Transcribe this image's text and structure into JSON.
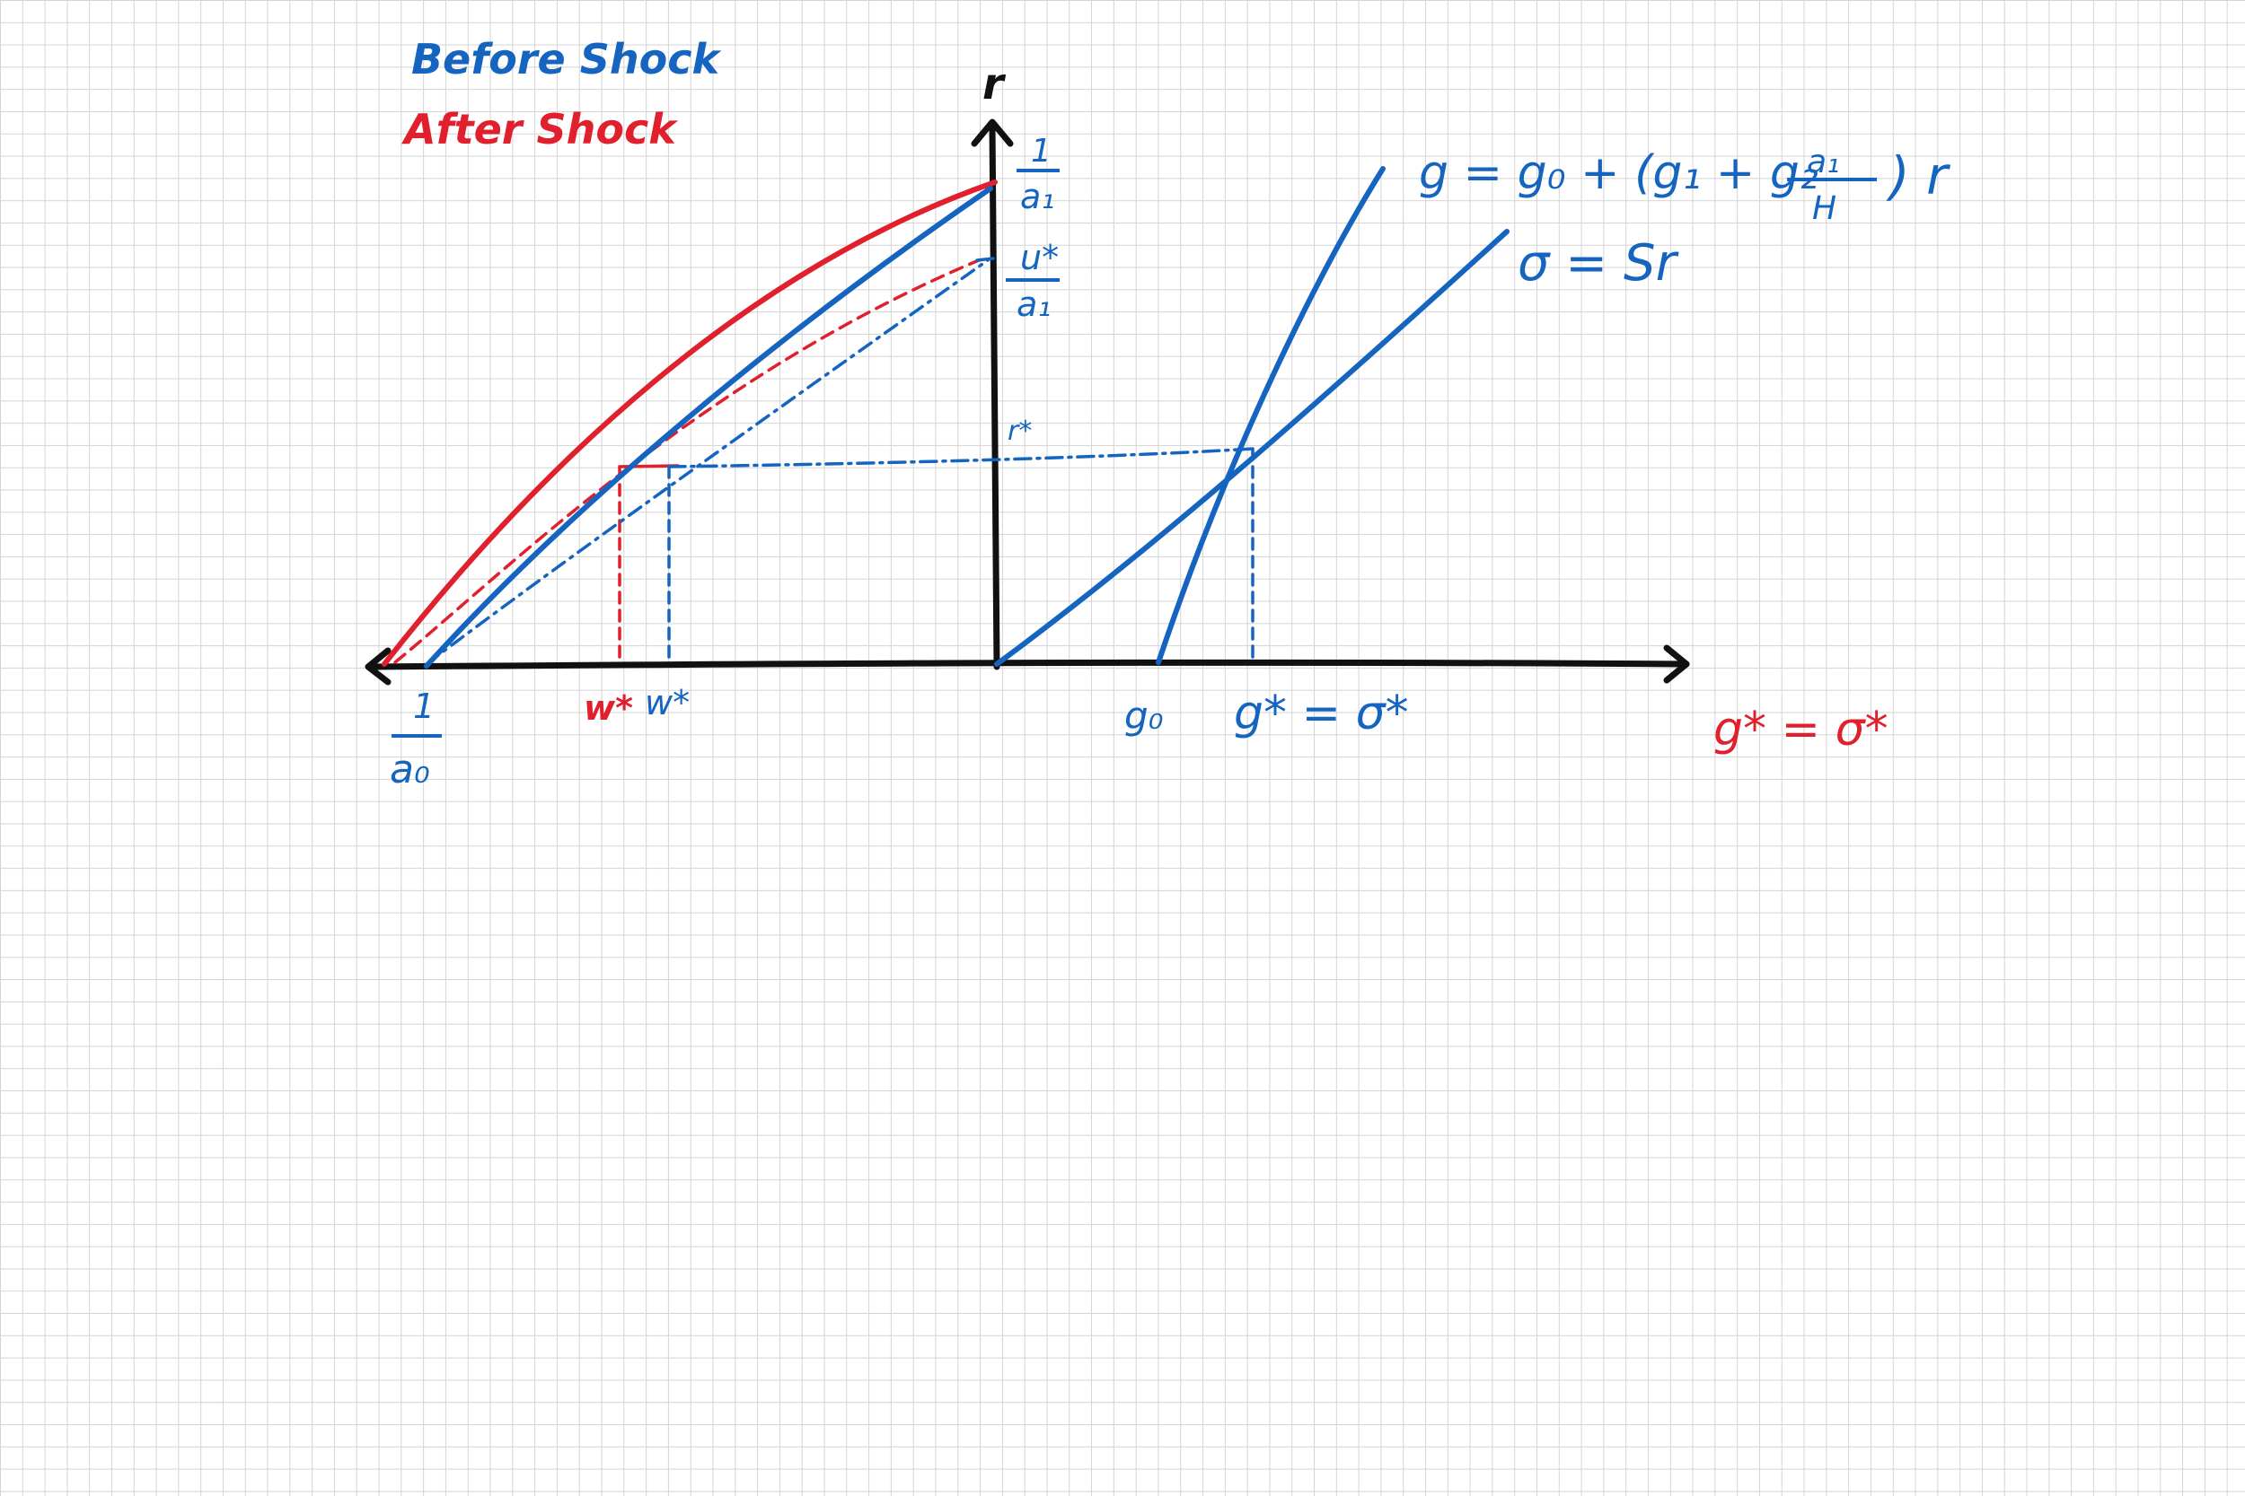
{
  "legend": {
    "before": "Before Shock",
    "after": "After Shock"
  },
  "axes": {
    "vertical_label": "r",
    "intercept_vertical_top_num": "1",
    "intercept_vertical_top_den": "a₁",
    "intercept_vertical_mid_num": "u*",
    "intercept_vertical_mid_den": "a₁",
    "r_star": "r*",
    "intercept_horizontal_num": "1",
    "intercept_horizontal_den": "a₀"
  },
  "labels": {
    "w_star_after": "w*",
    "w_star_before": "w*",
    "g0": "g₀",
    "equilibrium_before": "g* = σ*",
    "equilibrium_after": "g* = σ*",
    "investment_eq": "g = g₀ + (g₁ + g₂",
    "investment_frac_num": "a₁",
    "investment_frac_den": "H",
    "investment_tail": ") r",
    "savings_eq": "σ = Sr"
  },
  "colors": {
    "before": "#1464c0",
    "after": "#e0202c",
    "axes": "#111111",
    "grid": "#d4d4d4"
  }
}
